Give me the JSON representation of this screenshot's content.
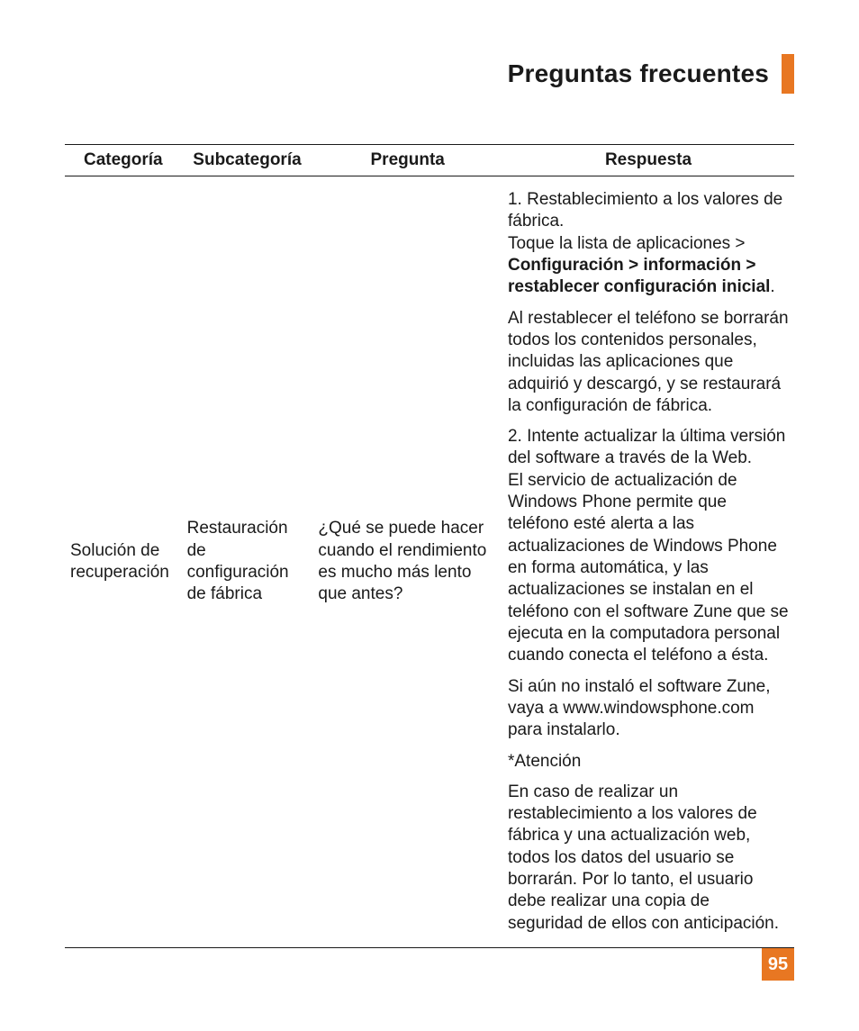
{
  "header": {
    "title": "Preguntas frecuentes",
    "accent_color": "#e87722",
    "title_fontsize": 28
  },
  "table": {
    "header_border_color": "#1a1a1a",
    "body_fontsize": 19,
    "columns": {
      "categoria": "Categoría",
      "subcategoria": "Subcategoría",
      "pregunta": "Pregunta",
      "respuesta": "Respuesta"
    },
    "row": {
      "categoria": "Solución de recuperación",
      "subcategoria": "Restauración de configuración de fábrica",
      "pregunta": "¿Qué se puede hacer cuando el rendimiento es mucho más lento que antes?",
      "respuesta": {
        "p1_line1": "1. Restablecimiento a los valores de fábrica.",
        "p1_line2": "Toque la lista de aplicaciones > ",
        "p1_bold1": "Configuración > información > restablecer configuración inicial",
        "p1_tail": ".",
        "p2": "Al restablecer el teléfono se borrarán todos los contenidos personales, incluidas las aplicaciones que adquirió y descargó, y se restaurará la configuración de fábrica.",
        "p3": "2. Intente actualizar la última versión del software a través de la Web.\nEl servicio de actualización de Windows Phone permite que teléfono esté alerta a las actualizaciones de Windows Phone en forma automática, y las actualizaciones se  instalan en el teléfono con el software Zune que se ejecuta en la computadora personal cuando conecta el teléfono a ésta.",
        "p4": "Si aún no instaló el software Zune, vaya a www.windowsphone.com para instalarlo.",
        "p5": "*Atención",
        "p6": "En caso de realizar un restablecimiento a los valores de fábrica y una actualización web, todos los datos del usuario se borrarán. Por lo tanto, el usuario debe realizar una copia de seguridad de ellos con anticipación."
      }
    }
  },
  "page_number": {
    "value": "95",
    "bg_color": "#e87722",
    "text_color": "#ffffff",
    "fontsize": 20
  }
}
